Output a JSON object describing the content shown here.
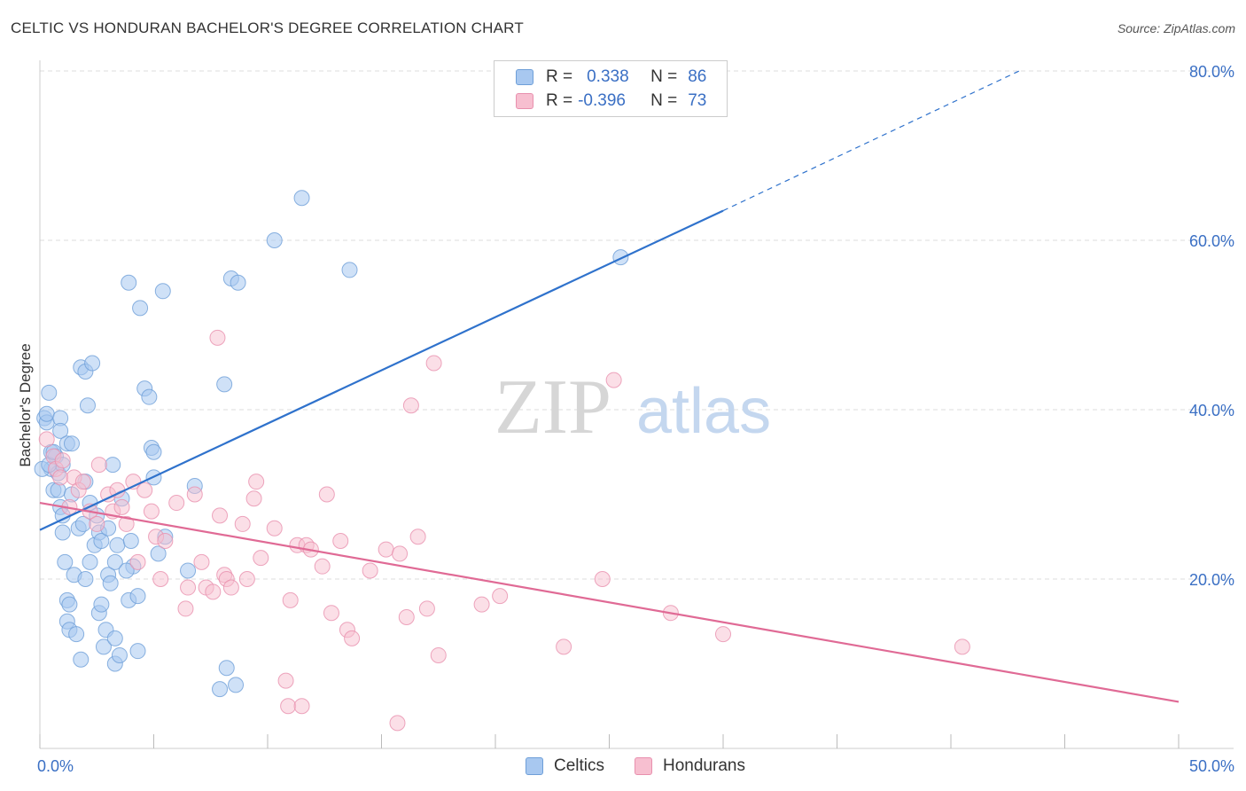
{
  "header": {
    "title": "CELTIC VS HONDURAN BACHELOR'S DEGREE CORRELATION CHART",
    "source": "Source: ZipAtlas.com"
  },
  "legend": {
    "row1": {
      "r_label": "R =",
      "r_value": "0.338",
      "n_label": "N =",
      "n_value": "86"
    },
    "row2": {
      "r_label": "R =",
      "r_value": "-0.396",
      "n_label": "N =",
      "n_value": "73"
    }
  },
  "series_labels": {
    "celtics": "Celtics",
    "hondurans": "Hondurans"
  },
  "watermark": "ZIPatlas",
  "colors": {
    "celtic_fill": "#a8c8f0",
    "celtic_stroke": "#6e9fd8",
    "celtic_line": "#2f72cc",
    "honduran_fill": "#f7bfd0",
    "honduran_stroke": "#e890ae",
    "honduran_line": "#e06a95",
    "tick_label": "#3a6fc4",
    "grid": "#dddddd"
  },
  "chart_data": {
    "type": "scatter",
    "title": "CELTIC VS HONDURAN BACHELOR'S DEGREE CORRELATION CHART",
    "xlabel": "",
    "ylabel": "Bachelor's Degree",
    "xlim": [
      0,
      50
    ],
    "ylim": [
      0,
      82
    ],
    "x_tick_labels": [
      "0.0%",
      "50.0%"
    ],
    "y_ticks": [
      20,
      40,
      60,
      80
    ],
    "y_tick_labels": [
      "20.0%",
      "40.0%",
      "60.0%",
      "80.0%"
    ],
    "series": [
      {
        "name": "Celtics",
        "r": 0.338,
        "n": 86,
        "trend": {
          "x0": 0,
          "y0": 25.8,
          "x1": 30,
          "y1": 63.5,
          "dashed_to_x": 43,
          "dashed_to_y": 80
        },
        "points": [
          [
            0.2,
            39.0
          ],
          [
            0.3,
            38.5
          ],
          [
            0.3,
            39.5
          ],
          [
            0.4,
            42.0
          ],
          [
            0.5,
            33.0
          ],
          [
            0.5,
            35.0
          ],
          [
            0.6,
            30.5
          ],
          [
            0.7,
            34.5
          ],
          [
            0.8,
            32.5
          ],
          [
            0.8,
            30.5
          ],
          [
            0.9,
            28.5
          ],
          [
            0.9,
            39.0
          ],
          [
            0.9,
            37.5
          ],
          [
            1.0,
            33.5
          ],
          [
            1.0,
            25.5
          ],
          [
            1.1,
            22.0
          ],
          [
            1.2,
            17.5
          ],
          [
            1.2,
            15.0
          ],
          [
            1.3,
            17.0
          ],
          [
            1.3,
            14.0
          ],
          [
            1.2,
            36.0
          ],
          [
            1.4,
            36.0
          ],
          [
            1.5,
            20.5
          ],
          [
            1.6,
            13.5
          ],
          [
            1.7,
            26.0
          ],
          [
            1.8,
            45.0
          ],
          [
            1.8,
            10.5
          ],
          [
            1.9,
            26.5
          ],
          [
            2.0,
            20.0
          ],
          [
            2.0,
            44.5
          ],
          [
            2.0,
            31.5
          ],
          [
            2.1,
            40.5
          ],
          [
            2.2,
            22.0
          ],
          [
            2.3,
            45.5
          ],
          [
            2.4,
            24.0
          ],
          [
            2.5,
            27.5
          ],
          [
            2.6,
            16.0
          ],
          [
            2.6,
            25.5
          ],
          [
            2.7,
            17.0
          ],
          [
            2.8,
            12.0
          ],
          [
            2.9,
            14.0
          ],
          [
            3.0,
            20.5
          ],
          [
            3.1,
            19.5
          ],
          [
            3.2,
            33.5
          ],
          [
            3.3,
            13.0
          ],
          [
            3.3,
            22.0
          ],
          [
            3.3,
            10.0
          ],
          [
            3.4,
            24.0
          ],
          [
            3.5,
            11.0
          ],
          [
            3.6,
            29.5
          ],
          [
            3.9,
            17.5
          ],
          [
            3.9,
            55.0
          ],
          [
            4.0,
            24.5
          ],
          [
            4.1,
            21.5
          ],
          [
            4.3,
            11.5
          ],
          [
            4.3,
            18.0
          ],
          [
            4.4,
            52.0
          ],
          [
            4.6,
            42.5
          ],
          [
            4.8,
            41.5
          ],
          [
            4.9,
            35.5
          ],
          [
            5.0,
            35.0
          ],
          [
            5.2,
            23.0
          ],
          [
            5.4,
            54.0
          ],
          [
            5.5,
            25.0
          ],
          [
            6.5,
            21.0
          ],
          [
            6.8,
            31.0
          ],
          [
            7.9,
            7.0
          ],
          [
            8.1,
            43.0
          ],
          [
            8.2,
            9.5
          ],
          [
            8.4,
            55.5
          ],
          [
            8.6,
            7.5
          ],
          [
            8.7,
            55.0
          ],
          [
            10.3,
            60.0
          ],
          [
            11.5,
            65.0
          ],
          [
            13.6,
            56.5
          ],
          [
            25.5,
            58.0
          ],
          [
            0.1,
            33.0
          ],
          [
            0.4,
            33.5
          ],
          [
            0.6,
            35.0
          ],
          [
            1.0,
            27.5
          ],
          [
            1.4,
            30.0
          ],
          [
            2.2,
            29.0
          ],
          [
            2.7,
            24.5
          ],
          [
            3.0,
            26.0
          ],
          [
            3.8,
            21.0
          ],
          [
            5.0,
            32.0
          ]
        ]
      },
      {
        "name": "Hondurans",
        "r": -0.396,
        "n": 73,
        "trend": {
          "x0": 0,
          "y0": 29.0,
          "x1": 50,
          "y1": 5.5
        },
        "points": [
          [
            0.3,
            36.5
          ],
          [
            0.6,
            34.5
          ],
          [
            0.7,
            33.0
          ],
          [
            0.9,
            32.0
          ],
          [
            1.0,
            34.0
          ],
          [
            1.3,
            28.5
          ],
          [
            1.5,
            32.0
          ],
          [
            1.7,
            30.5
          ],
          [
            1.9,
            31.5
          ],
          [
            2.2,
            28.0
          ],
          [
            2.5,
            26.5
          ],
          [
            2.6,
            33.5
          ],
          [
            3.0,
            30.0
          ],
          [
            3.2,
            28.0
          ],
          [
            3.4,
            30.5
          ],
          [
            3.6,
            28.5
          ],
          [
            3.8,
            26.5
          ],
          [
            4.1,
            31.5
          ],
          [
            4.3,
            22.0
          ],
          [
            4.6,
            30.5
          ],
          [
            4.9,
            28.0
          ],
          [
            5.1,
            25.0
          ],
          [
            5.3,
            20.0
          ],
          [
            5.5,
            24.5
          ],
          [
            6.0,
            29.0
          ],
          [
            6.4,
            16.5
          ],
          [
            6.5,
            19.0
          ],
          [
            6.8,
            30.0
          ],
          [
            7.1,
            22.0
          ],
          [
            7.3,
            19.0
          ],
          [
            7.6,
            18.5
          ],
          [
            7.8,
            48.5
          ],
          [
            7.9,
            27.5
          ],
          [
            8.1,
            20.5
          ],
          [
            8.2,
            20.0
          ],
          [
            8.4,
            19.0
          ],
          [
            8.9,
            26.5
          ],
          [
            9.1,
            20.0
          ],
          [
            9.4,
            29.5
          ],
          [
            9.5,
            31.5
          ],
          [
            9.7,
            22.5
          ],
          [
            10.3,
            26.0
          ],
          [
            10.8,
            8.0
          ],
          [
            10.9,
            5.0
          ],
          [
            11.0,
            17.5
          ],
          [
            11.3,
            24.0
          ],
          [
            11.5,
            5.0
          ],
          [
            11.7,
            24.0
          ],
          [
            11.9,
            23.5
          ],
          [
            12.4,
            21.5
          ],
          [
            12.6,
            30.0
          ],
          [
            12.8,
            16.0
          ],
          [
            13.2,
            24.5
          ],
          [
            13.5,
            14.0
          ],
          [
            13.7,
            13.0
          ],
          [
            14.5,
            21.0
          ],
          [
            15.2,
            23.5
          ],
          [
            15.7,
            3.0
          ],
          [
            15.8,
            23.0
          ],
          [
            16.1,
            15.5
          ],
          [
            16.6,
            25.0
          ],
          [
            16.3,
            40.5
          ],
          [
            17.0,
            16.5
          ],
          [
            17.5,
            11.0
          ],
          [
            17.3,
            45.5
          ],
          [
            19.4,
            17.0
          ],
          [
            20.2,
            18.0
          ],
          [
            23.0,
            12.0
          ],
          [
            24.7,
            20.0
          ],
          [
            25.2,
            43.5
          ],
          [
            27.7,
            16.0
          ],
          [
            30.0,
            13.5
          ],
          [
            40.5,
            12.0
          ]
        ]
      }
    ]
  }
}
